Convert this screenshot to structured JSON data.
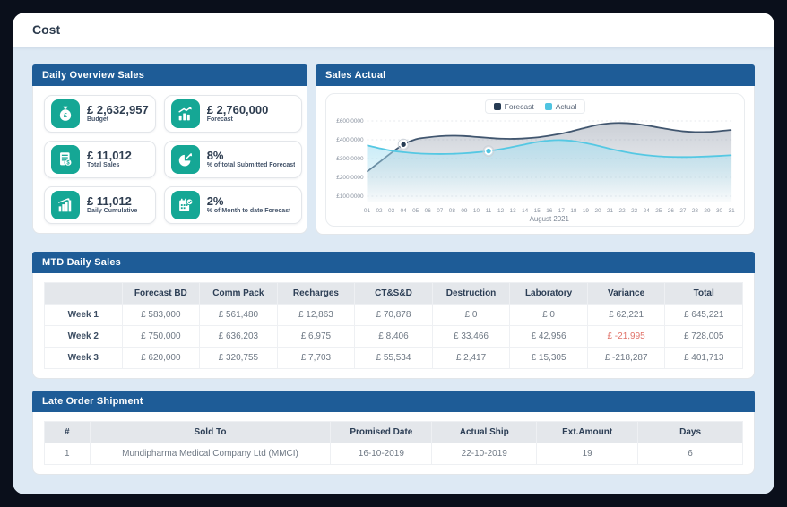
{
  "page": {
    "title": "Cost"
  },
  "colors": {
    "frame": "#0a0f1b",
    "content_bg": "#dde9f4",
    "panel_header_blue": "#1e5c97",
    "kpi_icon_teal": "#15a795",
    "negative_red": "#e0736a",
    "forecast_line": "#41566f",
    "forecast_legend": "#263b53",
    "actual_line": "#55c8e3"
  },
  "daily_overview": {
    "title": "Daily Overview Sales",
    "cards": [
      {
        "icon": "money-bag-icon",
        "value": "£ 2,632,957",
        "label": "Budget"
      },
      {
        "icon": "growth-chart-icon",
        "value": "£ 2,760,000",
        "label": "Forecast"
      },
      {
        "icon": "invoice-icon",
        "value": "£ 11,012",
        "label": "Total Sales"
      },
      {
        "icon": "pie-arrow-icon",
        "value": "8%",
        "label": "% of total Submitted Forecast"
      },
      {
        "icon": "bar-chart-icon",
        "value": "£ 11,012",
        "label": "Daily Cumulative"
      },
      {
        "icon": "calendar-check-icon",
        "value": "2%",
        "label": "% of Month to date Forecast"
      }
    ]
  },
  "sales_actual": {
    "title": "Sales Actual"
  },
  "chart_data": {
    "type": "area",
    "title": "Sales Actual",
    "xlabel": "August 2021",
    "x": [
      "01",
      "02",
      "03",
      "04",
      "05",
      "06",
      "07",
      "08",
      "09",
      "10",
      "11",
      "12",
      "13",
      "14",
      "15",
      "16",
      "17",
      "18",
      "19",
      "20",
      "21",
      "22",
      "23",
      "24",
      "25",
      "26",
      "27",
      "28",
      "29",
      "30",
      "31"
    ],
    "y_tick_labels": [
      "£600,0000",
      "£400,0000",
      "£300,0000",
      "£200,0000",
      "£100,0000"
    ],
    "y_tick_values": [
      600000,
      400000,
      300000,
      200000,
      100000
    ],
    "grid": true,
    "legend_position": "top",
    "series": [
      {
        "name": "Forecast",
        "color": "#41566f",
        "legend_color": "#263b53",
        "fill_color": "#8b95a5",
        "marker_index": 3,
        "values": [
          230000,
          280000,
          330000,
          375000,
          405000,
          425000,
          438000,
          443000,
          440000,
          430000,
          420000,
          412000,
          410000,
          415000,
          425000,
          443000,
          465000,
          495000,
          528000,
          558000,
          575000,
          578000,
          570000,
          552000,
          530000,
          508000,
          490000,
          482000,
          483000,
          492000,
          505000
        ]
      },
      {
        "name": "Actual",
        "color": "#55c8e3",
        "legend_color": "#4fc4e1",
        "fill_color": "#a6dff1",
        "marker_index": 10,
        "values": [
          370000,
          355000,
          342000,
          334000,
          328000,
          325000,
          324000,
          325000,
          328000,
          333000,
          340000,
          350000,
          362000,
          375000,
          388000,
          396000,
          398000,
          393000,
          382000,
          368000,
          352000,
          338000,
          326000,
          318000,
          312000,
          309000,
          308000,
          309000,
          311000,
          314000,
          318000
        ]
      }
    ]
  },
  "mtd_table": {
    "title": "MTD Daily Sales",
    "columns": [
      "",
      "Forecast BD",
      "Comm Pack",
      "Recharges",
      "CT&S&D",
      "Destruction",
      "Laboratory",
      "Variance",
      "Total"
    ],
    "rows": [
      {
        "label": "Week 1",
        "variance_red": false,
        "values": [
          "£ 583,000",
          "£ 561,480",
          "£ 12,863",
          "£ 70,878",
          "£ 0",
          "£ 0",
          "£ 62,221",
          "£ 645,221"
        ]
      },
      {
        "label": "Week 2",
        "variance_red": true,
        "values": [
          "£ 750,000",
          "£ 636,203",
          "£ 6,975",
          "£ 8,406",
          "£ 33,466",
          "£ 42,956",
          "£ -21,995",
          "£ 728,005"
        ]
      },
      {
        "label": "Week 3",
        "variance_red": false,
        "values": [
          "£ 620,000",
          "£ 320,755",
          "£ 7,703",
          "£ 55,534",
          "£ 2,417",
          "£ 15,305",
          "£ -218,287",
          "£ 401,713"
        ]
      }
    ]
  },
  "late_table": {
    "title": "Late Order Shipment",
    "columns": [
      "#",
      "Sold To",
      "Promised Date",
      "Actual Ship",
      "Ext.Amount",
      "Days"
    ],
    "rows": [
      [
        "1",
        "Mundipharma Medical Company Ltd (MMCI)",
        "16-10-2019",
        "22-10-2019",
        "19",
        "6"
      ]
    ]
  }
}
